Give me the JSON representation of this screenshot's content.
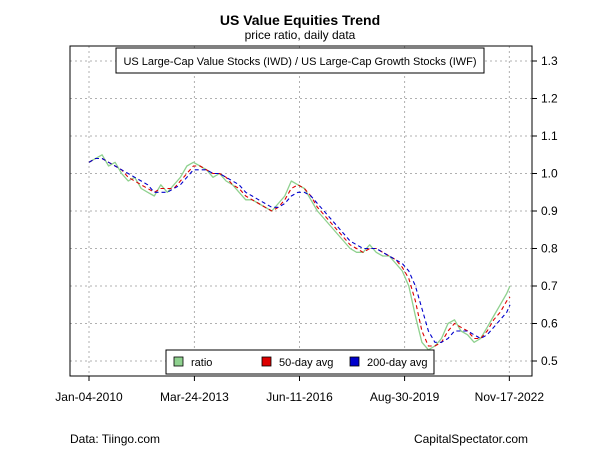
{
  "title": "US Value Equities Trend",
  "subtitle": "price ratio, daily data",
  "footer": {
    "left": "Data: Tiingo.com",
    "right": "CapitalSpectator.com"
  },
  "chart_data": {
    "type": "line",
    "series_label": "US Large-Cap Value Stocks (IWD) / US Large-Cap Growth Stocks (IWF)",
    "x_ticks": [
      "Jan-04-2010",
      "Mar-24-2013",
      "Jun-11-2016",
      "Aug-30-2019",
      "Nov-17-2022"
    ],
    "y_ticks": [
      0.5,
      0.6,
      0.7,
      0.8,
      0.9,
      1.0,
      1.1,
      1.2,
      1.3
    ],
    "ylim": [
      0.46,
      1.34
    ],
    "grid": true,
    "legend": {
      "placement": "bottom",
      "items": [
        {
          "label": "ratio",
          "color": "#8fd18f"
        },
        {
          "label": "50-day avg",
          "color": "#dd0000"
        },
        {
          "label": "200-day avg",
          "color": "#0000cc"
        }
      ]
    },
    "x_years": [
      2010.0,
      2010.2,
      2010.4,
      2010.6,
      2010.8,
      2011.0,
      2011.2,
      2011.4,
      2011.6,
      2011.8,
      2012.0,
      2012.2,
      2012.4,
      2012.6,
      2012.8,
      2013.0,
      2013.2,
      2013.4,
      2013.6,
      2013.8,
      2014.0,
      2014.2,
      2014.4,
      2014.6,
      2014.8,
      2015.0,
      2015.2,
      2015.4,
      2015.6,
      2015.8,
      2016.0,
      2016.2,
      2016.4,
      2016.6,
      2016.8,
      2017.0,
      2017.2,
      2017.4,
      2017.6,
      2017.8,
      2018.0,
      2018.2,
      2018.4,
      2018.6,
      2018.8,
      2019.0,
      2019.2,
      2019.4,
      2019.6,
      2019.8,
      2020.0,
      2020.2,
      2020.4,
      2020.6,
      2020.8,
      2021.0,
      2021.2,
      2021.4,
      2021.6,
      2021.8,
      2022.0,
      2022.2,
      2022.4,
      2022.6,
      2022.8,
      2022.9
    ],
    "series": [
      {
        "name": "ratio",
        "color": "#8fd18f",
        "values": [
          1.03,
          1.04,
          1.05,
          1.02,
          1.03,
          1.0,
          0.98,
          0.99,
          0.96,
          0.95,
          0.94,
          0.97,
          0.95,
          0.97,
          0.99,
          1.02,
          1.03,
          1.02,
          1.01,
          0.99,
          1.0,
          0.98,
          0.97,
          0.95,
          0.93,
          0.93,
          0.92,
          0.91,
          0.9,
          0.92,
          0.94,
          0.98,
          0.97,
          0.96,
          0.93,
          0.9,
          0.88,
          0.86,
          0.84,
          0.82,
          0.8,
          0.79,
          0.79,
          0.81,
          0.79,
          0.78,
          0.78,
          0.76,
          0.74,
          0.7,
          0.62,
          0.55,
          0.53,
          0.54,
          0.56,
          0.6,
          0.61,
          0.58,
          0.57,
          0.55,
          0.56,
          0.59,
          0.62,
          0.65,
          0.68,
          0.7
        ]
      },
      {
        "name": "50-day avg",
        "color": "#dd0000",
        "values": [
          1.03,
          1.04,
          1.04,
          1.03,
          1.02,
          1.01,
          0.99,
          0.98,
          0.97,
          0.96,
          0.95,
          0.96,
          0.96,
          0.96,
          0.98,
          1.0,
          1.02,
          1.02,
          1.01,
          1.0,
          1.0,
          0.99,
          0.97,
          0.96,
          0.94,
          0.93,
          0.92,
          0.91,
          0.9,
          0.91,
          0.93,
          0.96,
          0.97,
          0.96,
          0.94,
          0.91,
          0.89,
          0.87,
          0.85,
          0.83,
          0.81,
          0.8,
          0.79,
          0.8,
          0.8,
          0.79,
          0.78,
          0.77,
          0.75,
          0.72,
          0.66,
          0.58,
          0.54,
          0.54,
          0.55,
          0.58,
          0.6,
          0.59,
          0.58,
          0.56,
          0.56,
          0.58,
          0.61,
          0.63,
          0.66,
          0.67
        ]
      },
      {
        "name": "200-day avg",
        "color": "#0000cc",
        "values": [
          1.03,
          1.04,
          1.04,
          1.03,
          1.02,
          1.01,
          1.0,
          0.99,
          0.98,
          0.97,
          0.95,
          0.95,
          0.95,
          0.96,
          0.97,
          0.99,
          1.01,
          1.01,
          1.01,
          1.0,
          1.0,
          0.99,
          0.98,
          0.97,
          0.95,
          0.94,
          0.93,
          0.92,
          0.91,
          0.91,
          0.92,
          0.94,
          0.95,
          0.95,
          0.94,
          0.92,
          0.9,
          0.88,
          0.86,
          0.84,
          0.82,
          0.81,
          0.8,
          0.8,
          0.8,
          0.79,
          0.78,
          0.77,
          0.76,
          0.74,
          0.7,
          0.64,
          0.58,
          0.55,
          0.55,
          0.56,
          0.58,
          0.58,
          0.58,
          0.57,
          0.56,
          0.57,
          0.59,
          0.61,
          0.63,
          0.65
        ]
      }
    ]
  }
}
